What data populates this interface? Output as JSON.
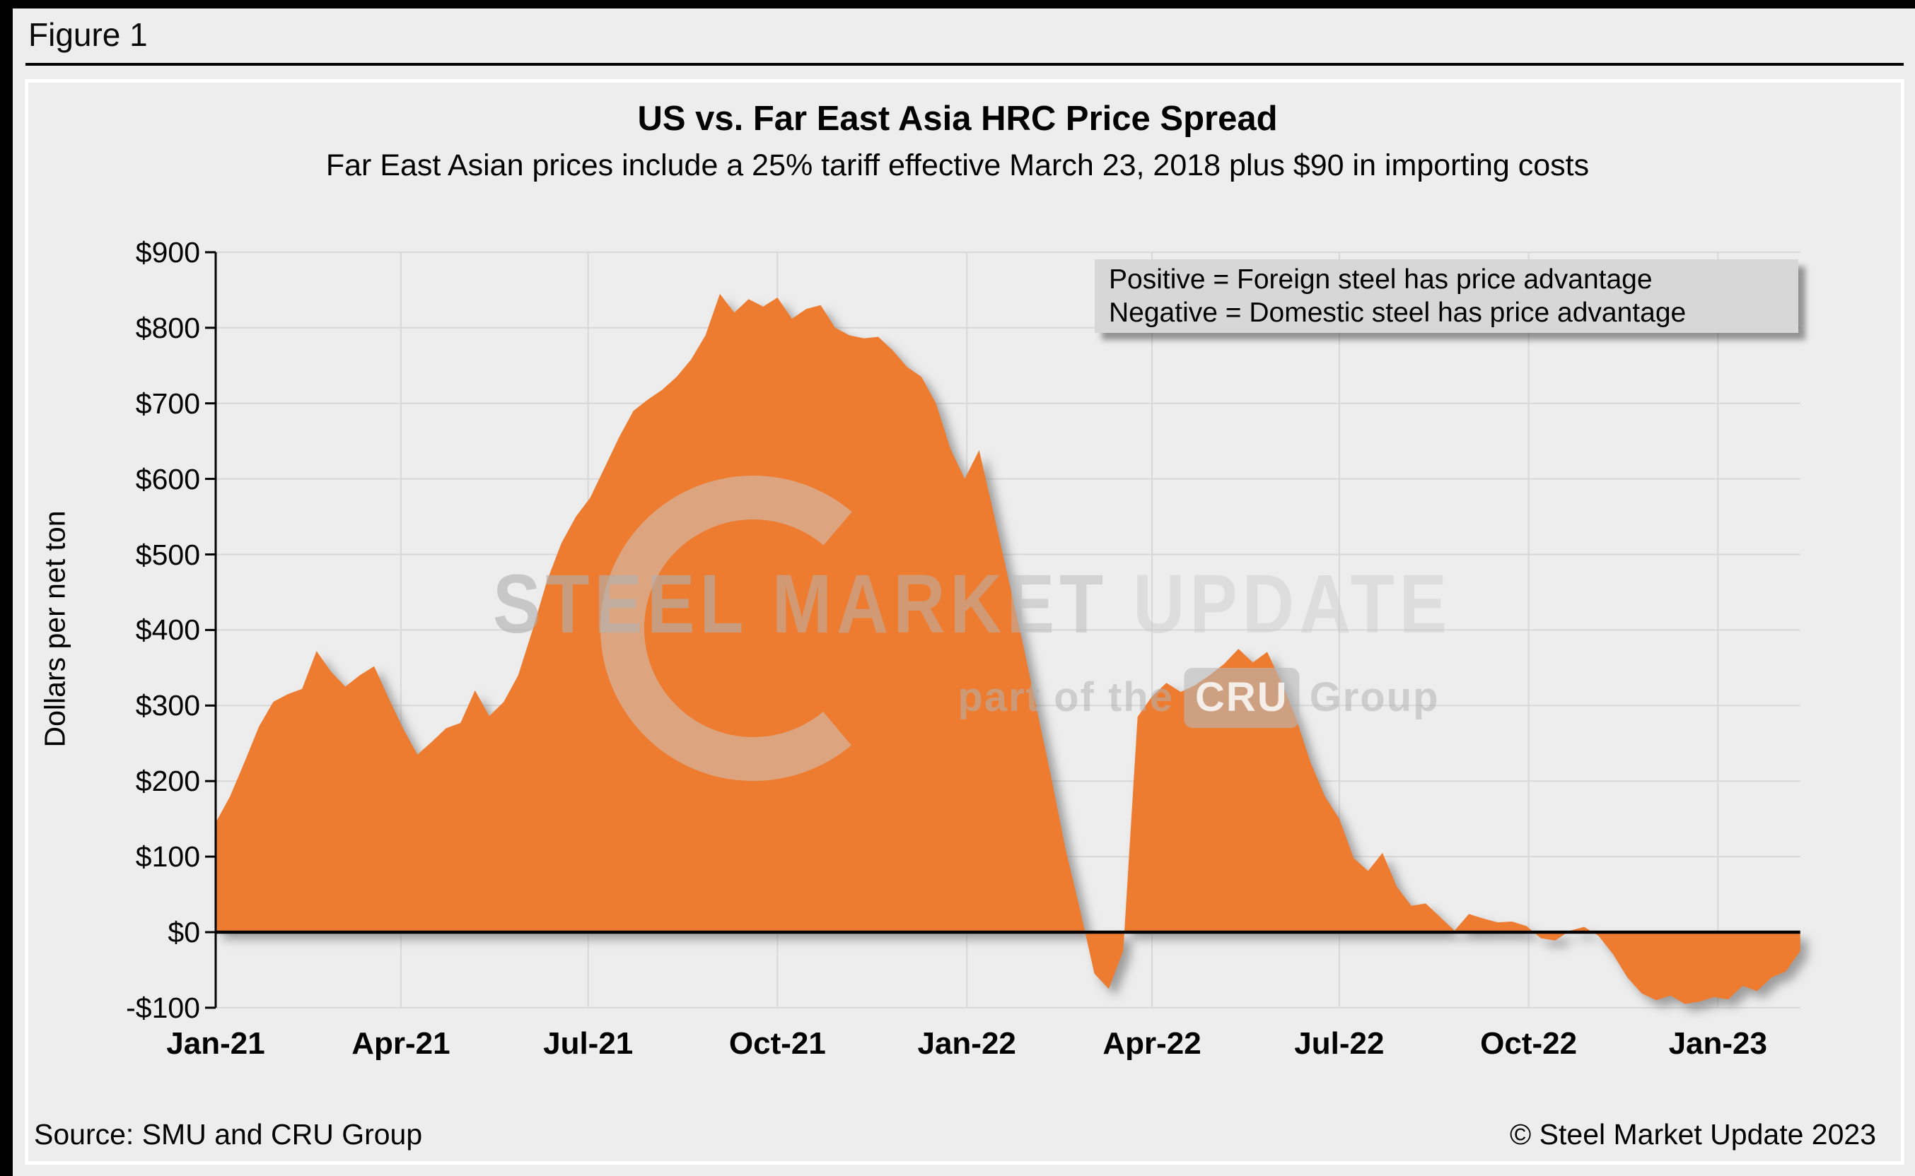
{
  "page": {
    "figure_label": "Figure 1",
    "source": "Source: SMU and CRU Group",
    "copyright": "© Steel Market Update 2023"
  },
  "watermark": {
    "word1": "STEEL",
    "word2": "MARKET",
    "word3": "UPDATE",
    "line2_prefix": "part of the",
    "line2_box": "CRU",
    "line2_suffix": "Group"
  },
  "colors": {
    "area_fill": "#ED7C31",
    "background": "#EDEDED",
    "gridline": "#D8D8D8",
    "legend_background": "#D7D7D7",
    "zero_line": "#000000"
  },
  "chart_data": {
    "type": "area",
    "title": "US vs. Far East Asia HRC Price Spread",
    "subtitle": "Far East Asian prices include a 25% tariff effective March 23, 2018 plus $90 in importing costs",
    "ylabel": "Dollars per net ton",
    "ylim": [
      -100,
      900
    ],
    "grid": true,
    "legend_position": "top-right",
    "annotations": [
      "Positive = Foreign steel has price advantage",
      "Negative = Domestic steel has price advantage"
    ],
    "y_ticks": [
      {
        "v": 900,
        "label": "$900"
      },
      {
        "v": 800,
        "label": "$800"
      },
      {
        "v": 700,
        "label": "$700"
      },
      {
        "v": 600,
        "label": "$600"
      },
      {
        "v": 500,
        "label": "$500"
      },
      {
        "v": 400,
        "label": "$400"
      },
      {
        "v": 300,
        "label": "$300"
      },
      {
        "v": 200,
        "label": "$200"
      },
      {
        "v": 100,
        "label": "$100"
      },
      {
        "v": 0,
        "label": "$0"
      },
      {
        "v": -100,
        "label": "-$100"
      }
    ],
    "x_ticks": [
      {
        "date": "2021-01-01",
        "label": "Jan-21"
      },
      {
        "date": "2021-04-01",
        "label": "Apr-21"
      },
      {
        "date": "2021-07-01",
        "label": "Jul-21"
      },
      {
        "date": "2021-10-01",
        "label": "Oct-21"
      },
      {
        "date": "2022-01-01",
        "label": "Jan-22"
      },
      {
        "date": "2022-04-01",
        "label": "Apr-22"
      },
      {
        "date": "2022-07-01",
        "label": "Jul-22"
      },
      {
        "date": "2022-10-01",
        "label": "Oct-22"
      },
      {
        "date": "2023-01-01",
        "label": "Jan-23"
      }
    ],
    "series": {
      "name": "US vs. Far East Asia HRC price spread",
      "unit": "USD per net ton",
      "start_date": "2021-01-01",
      "interval_days": 7,
      "values": [
        145,
        180,
        225,
        272,
        305,
        315,
        322,
        372,
        345,
        325,
        340,
        352,
        310,
        270,
        235,
        252,
        270,
        277,
        320,
        286,
        305,
        340,
        400,
        465,
        515,
        550,
        575,
        615,
        655,
        690,
        705,
        718,
        735,
        758,
        790,
        845,
        820,
        838,
        828,
        840,
        812,
        825,
        830,
        800,
        790,
        786,
        788,
        770,
        748,
        735,
        700,
        640,
        600,
        638,
        555,
        470,
        385,
        295,
        205,
        110,
        30,
        -55,
        -75,
        -25,
        285,
        312,
        330,
        318,
        327,
        340,
        355,
        375,
        357,
        371,
        330,
        283,
        225,
        180,
        150,
        98,
        81,
        105,
        60,
        35,
        38,
        20,
        2,
        24,
        18,
        13,
        14,
        8,
        -8,
        -11,
        2,
        7,
        -5,
        -29,
        -60,
        -81,
        -90,
        -84,
        -95,
        -92,
        -86,
        -89,
        -71,
        -78,
        -60,
        -52,
        -25
      ]
    }
  }
}
